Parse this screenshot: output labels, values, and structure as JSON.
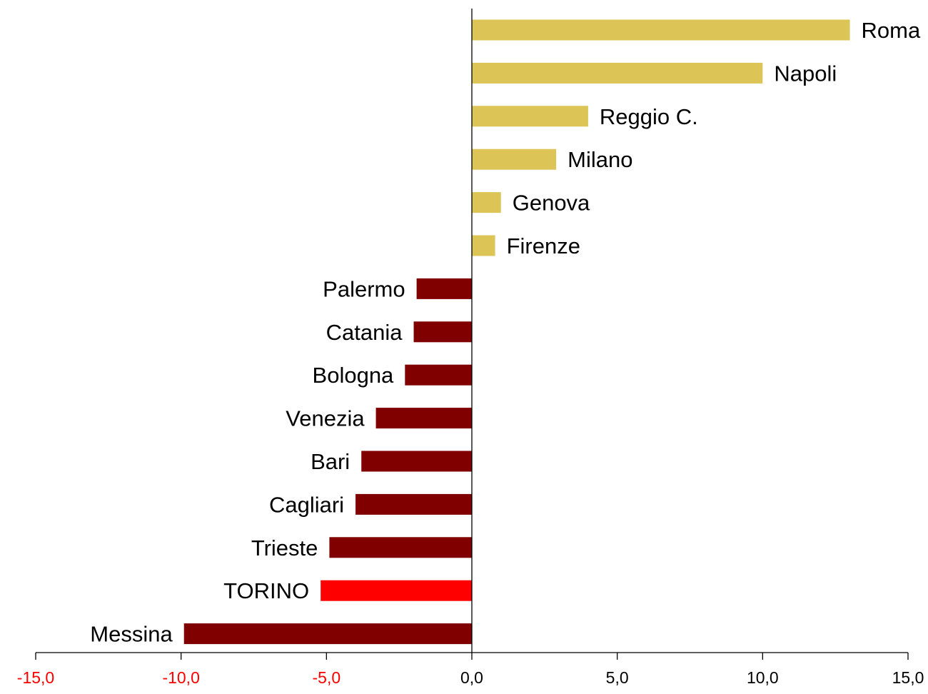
{
  "chart_data": {
    "type": "bar",
    "orientation": "horizontal",
    "categories": [
      "Roma",
      "Napoli",
      "Reggio C.",
      "Milano",
      "Genova",
      "Firenze",
      "Palermo",
      "Catania",
      "Bologna",
      "Venezia",
      "Bari",
      "Cagliari",
      "Trieste",
      "TORINO",
      "Messina"
    ],
    "values": [
      13.0,
      10.0,
      4.0,
      2.9,
      1.0,
      0.8,
      -1.9,
      -2.0,
      -2.3,
      -3.3,
      -3.8,
      -4.0,
      -4.9,
      -5.2,
      -9.9
    ],
    "title": "",
    "xlabel": "",
    "ylabel": "",
    "xlim": [
      -15,
      15
    ],
    "xticks": [
      -15,
      -10,
      -5,
      0,
      5,
      10,
      15
    ],
    "xtick_labels": [
      "-15,0",
      "-10,0",
      "-5,0",
      "0,0",
      "5,0",
      "10,0",
      "15,0"
    ],
    "grid": false,
    "legend": "none",
    "colors": {
      "positive": "#dcc556",
      "negative": "#800000",
      "highlight": "#ff0000",
      "negative_tick": "#ff0000",
      "positive_tick": "#000000",
      "axis": "#000000"
    },
    "highlight_category": "TORINO"
  }
}
